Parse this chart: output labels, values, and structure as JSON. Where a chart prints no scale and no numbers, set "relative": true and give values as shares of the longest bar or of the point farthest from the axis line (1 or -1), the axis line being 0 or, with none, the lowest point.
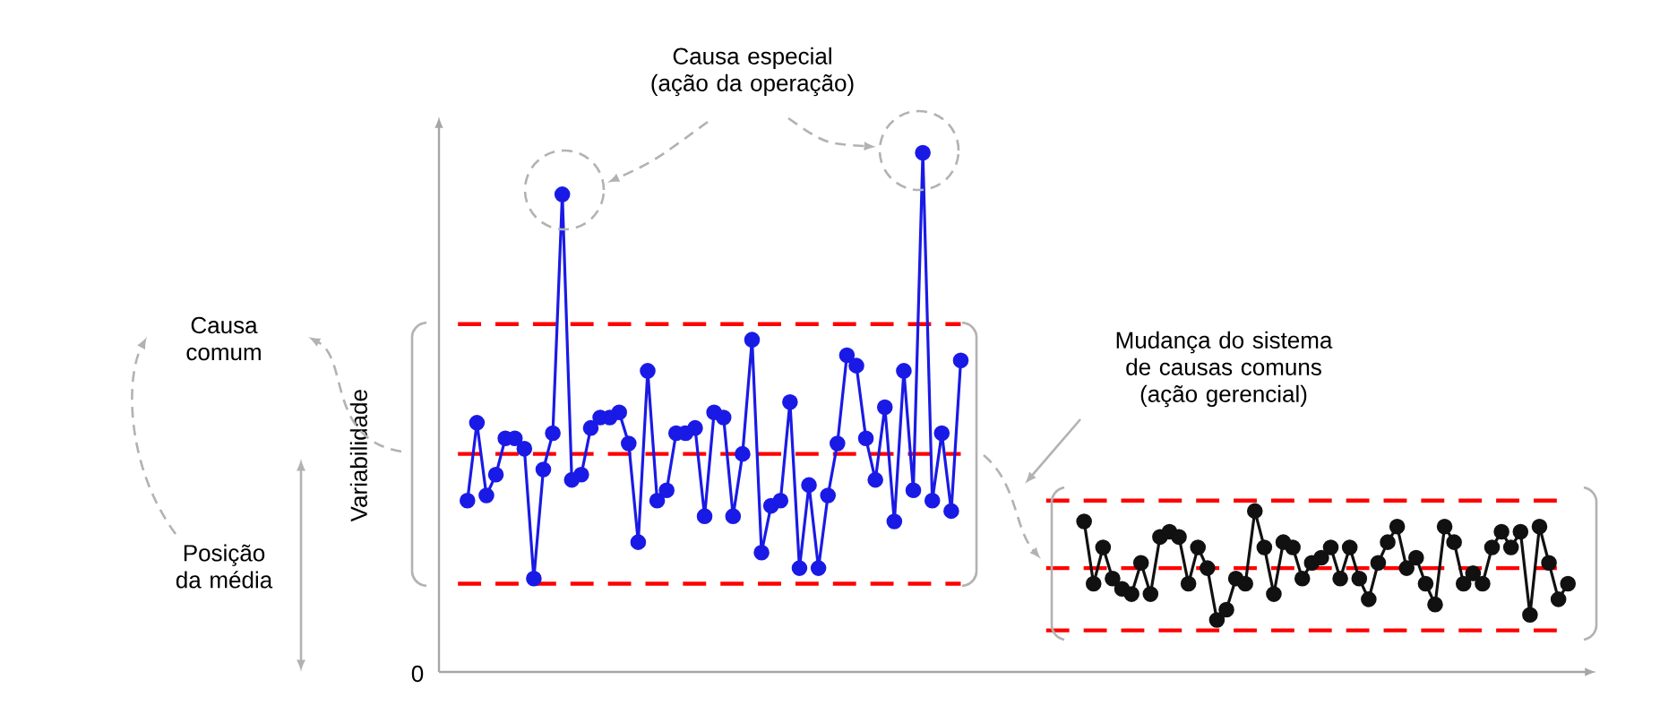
{
  "chart_data": {
    "type": "line",
    "relative": true,
    "ylabel": "Variabilidade",
    "marker": "circle",
    "annotations": [
      "Causa especial (ação da operação)",
      "Mudança do sistema de causas comuns (ação gerencial)",
      "Causa comum",
      "Posição da média",
      "0"
    ],
    "categories": [
      null,
      null,
      null,
      null,
      null,
      null,
      null,
      null,
      null,
      null,
      null,
      null,
      null,
      null,
      null,
      null,
      null,
      null,
      null,
      null,
      null,
      null,
      null,
      null,
      null,
      null,
      null,
      null,
      null,
      null,
      null,
      null,
      null,
      null,
      null,
      null,
      null,
      null,
      null,
      null,
      null,
      null,
      null,
      null,
      null,
      null,
      null,
      null,
      null,
      null,
      null,
      null,
      null,
      null,
      null,
      null,
      null,
      null,
      null,
      null,
      null,
      null,
      null,
      null,
      null,
      null,
      null,
      null,
      null,
      null,
      null,
      null,
      null,
      null,
      null,
      null,
      null,
      null,
      null,
      null,
      null,
      null,
      null,
      null,
      null,
      null,
      null,
      null,
      null,
      null,
      null,
      null,
      null,
      null,
      null,
      null,
      null,
      null,
      null,
      null,
      null,
      null,
      null,
      null,
      null,
      null,
      null,
      null,
      null,
      null,
      null,
      null,
      null,
      null,
      null,
      null,
      null,
      null,
      null,
      null,
      null,
      null,
      null
    ],
    "series": [
      {
        "color": "#ff0000",
        "marker": "none",
        "line_style": "dashed",
        "values": [
          null,
          null,
          0.67,
          0.67,
          0.67,
          0.67,
          0.67,
          0.67,
          0.67,
          0.67,
          0.67,
          0.67,
          0.67,
          0.67,
          0.67,
          0.67,
          0.67,
          0.67,
          0.67,
          0.67,
          0.67,
          0.67,
          0.67,
          0.67,
          0.67,
          0.67,
          0.67,
          0.67,
          0.67,
          0.67,
          0.67,
          0.67,
          0.67,
          0.67,
          0.67,
          0.67,
          0.67,
          0.67,
          0.67,
          0.67,
          0.67,
          0.67,
          0.67,
          0.67,
          0.67,
          0.67,
          0.67,
          0.67,
          0.67,
          0.67,
          0.67,
          0.67,
          0.67,
          0.67,
          0.67,
          0.67,
          null,
          null,
          null,
          null,
          null,
          null,
          null,
          null,
          0.33,
          0.33,
          0.33,
          0.33,
          0.33,
          0.33,
          0.33,
          0.33,
          0.33,
          0.33,
          0.33,
          0.33,
          0.33,
          0.33,
          0.33,
          0.33,
          0.33,
          0.33,
          0.33,
          0.33,
          0.33,
          0.33,
          0.33,
          0.33,
          0.33,
          0.33,
          0.33,
          0.33,
          0.33,
          0.33,
          0.33,
          0.33,
          0.33,
          0.33,
          0.33,
          0.33,
          0.33,
          0.33,
          0.33,
          0.33,
          0.33,
          0.33,
          0.33,
          0.33,
          0.33,
          0.33,
          0.33,
          0.33,
          0.33,
          0.33,
          0.33,
          0.33,
          0.33,
          0.33,
          0.33,
          null,
          null,
          null,
          null
        ]
      },
      {
        "color": "#ff0000",
        "marker": "none",
        "line_style": "dashed",
        "values": [
          null,
          null,
          0.42,
          0.42,
          0.42,
          0.42,
          0.42,
          0.42,
          0.42,
          0.42,
          0.42,
          0.42,
          0.42,
          0.42,
          0.42,
          0.42,
          0.42,
          0.42,
          0.42,
          0.42,
          0.42,
          0.42,
          0.42,
          0.42,
          0.42,
          0.42,
          0.42,
          0.42,
          0.42,
          0.42,
          0.42,
          0.42,
          0.42,
          0.42,
          0.42,
          0.42,
          0.42,
          0.42,
          0.42,
          0.42,
          0.42,
          0.42,
          0.42,
          0.42,
          0.42,
          0.42,
          0.42,
          0.42,
          0.42,
          0.42,
          0.42,
          0.42,
          0.42,
          0.42,
          0.42,
          0.42,
          null,
          null,
          null,
          null,
          null,
          null,
          null,
          null,
          0.2,
          0.2,
          0.2,
          0.2,
          0.2,
          0.2,
          0.2,
          0.2,
          0.2,
          0.2,
          0.2,
          0.2,
          0.2,
          0.2,
          0.2,
          0.2,
          0.2,
          0.2,
          0.2,
          0.2,
          0.2,
          0.2,
          0.2,
          0.2,
          0.2,
          0.2,
          0.2,
          0.2,
          0.2,
          0.2,
          0.2,
          0.2,
          0.2,
          0.2,
          0.2,
          0.2,
          0.2,
          0.2,
          0.2,
          0.2,
          0.2,
          0.2,
          0.2,
          0.2,
          0.2,
          0.2,
          0.2,
          0.2,
          0.2,
          0.2,
          0.2,
          0.2,
          0.2,
          0.2,
          0.2,
          null,
          null,
          null,
          null
        ]
      },
      {
        "color": "#ff0000",
        "marker": "none",
        "line_style": "dashed",
        "values": [
          null,
          null,
          0.17,
          0.17,
          0.17,
          0.17,
          0.17,
          0.17,
          0.17,
          0.17,
          0.17,
          0.17,
          0.17,
          0.17,
          0.17,
          0.17,
          0.17,
          0.17,
          0.17,
          0.17,
          0.17,
          0.17,
          0.17,
          0.17,
          0.17,
          0.17,
          0.17,
          0.17,
          0.17,
          0.17,
          0.17,
          0.17,
          0.17,
          0.17,
          0.17,
          0.17,
          0.17,
          0.17,
          0.17,
          0.17,
          0.17,
          0.17,
          0.17,
          0.17,
          0.17,
          0.17,
          0.17,
          0.17,
          0.17,
          0.17,
          0.17,
          0.17,
          0.17,
          0.17,
          0.17,
          0.17,
          null,
          null,
          null,
          null,
          null,
          null,
          null,
          null,
          0.08,
          0.08,
          0.08,
          0.08,
          0.08,
          0.08,
          0.08,
          0.08,
          0.08,
          0.08,
          0.08,
          0.08,
          0.08,
          0.08,
          0.08,
          0.08,
          0.08,
          0.08,
          0.08,
          0.08,
          0.08,
          0.08,
          0.08,
          0.08,
          0.08,
          0.08,
          0.08,
          0.08,
          0.08,
          0.08,
          0.08,
          0.08,
          0.08,
          0.08,
          0.08,
          0.08,
          0.08,
          0.08,
          0.08,
          0.08,
          0.08,
          0.08,
          0.08,
          0.08,
          0.08,
          0.08,
          0.08,
          0.08,
          0.08,
          0.08,
          0.08,
          0.08,
          0.08,
          0.08,
          0.08,
          null,
          null,
          null,
          null
        ]
      },
      {
        "color": "#1a1ae6",
        "values": [
          null,
          null,
          null,
          0.33,
          0.48,
          0.34,
          0.38,
          0.45,
          0.45,
          0.43,
          0.18,
          0.39,
          0.46,
          0.92,
          0.37,
          0.38,
          0.47,
          0.49,
          0.49,
          0.5,
          0.44,
          0.25,
          0.58,
          0.33,
          0.35,
          0.46,
          0.46,
          0.47,
          0.3,
          0.5,
          0.49,
          0.3,
          0.42,
          0.64,
          0.23,
          0.32,
          0.33,
          0.52,
          0.2,
          0.36,
          0.2,
          0.34,
          0.44,
          0.61,
          0.59,
          0.45,
          0.37,
          0.51,
          0.29,
          0.58,
          0.35,
          1,
          0.33,
          0.46,
          0.31,
          0.6,
          null,
          null,
          null,
          null,
          null,
          null,
          null,
          null,
          null,
          null,
          null,
          null,
          null,
          null,
          null,
          null,
          null,
          null,
          null,
          null,
          null,
          null,
          null,
          null,
          null,
          null,
          null,
          null,
          null,
          null,
          null,
          null,
          null,
          null,
          null,
          null,
          null,
          null,
          null,
          null,
          null,
          null,
          null,
          null,
          null,
          null,
          null,
          null,
          null,
          null,
          null,
          null,
          null,
          null,
          null,
          null,
          null,
          null,
          null,
          null,
          null,
          null,
          null,
          null,
          null,
          null,
          null
        ]
      },
      {
        "color": "#111111",
        "values": [
          null,
          null,
          null,
          null,
          null,
          null,
          null,
          null,
          null,
          null,
          null,
          null,
          null,
          null,
          null,
          null,
          null,
          null,
          null,
          null,
          null,
          null,
          null,
          null,
          null,
          null,
          null,
          null,
          null,
          null,
          null,
          null,
          null,
          null,
          null,
          null,
          null,
          null,
          null,
          null,
          null,
          null,
          null,
          null,
          null,
          null,
          null,
          null,
          null,
          null,
          null,
          null,
          null,
          null,
          null,
          null,
          null,
          null,
          null,
          null,
          null,
          null,
          null,
          null,
          null,
          null,
          null,
          null,
          0.29,
          0.17,
          0.24,
          0.18,
          0.16,
          0.15,
          0.21,
          0.15,
          0.26,
          0.27,
          0.26,
          0.17,
          0.24,
          0.2,
          0.1,
          0.12,
          0.18,
          0.17,
          0.31,
          0.24,
          0.15,
          0.25,
          0.24,
          0.18,
          0.21,
          0.22,
          0.24,
          0.18,
          0.24,
          0.18,
          0.14,
          0.21,
          0.25,
          0.28,
          0.2,
          0.22,
          0.17,
          0.13,
          0.28,
          0.25,
          0.17,
          0.19,
          0.17,
          0.24,
          0.27,
          0.24,
          0.27,
          0.11,
          0.28,
          0.21,
          0.14,
          0.17,
          null,
          null,
          null
        ]
      }
    ]
  }
}
